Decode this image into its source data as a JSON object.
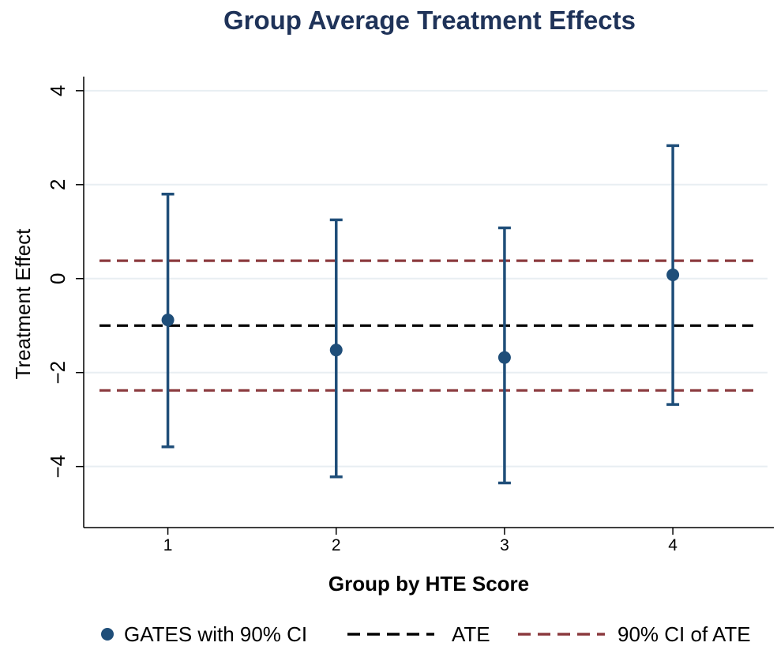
{
  "chart_data": {
    "type": "scatter",
    "title": "Group Average Treatment Effects",
    "xlabel": "Group by HTE Score",
    "ylabel": "Treatment Effect",
    "x_ticks": [
      "1",
      "2",
      "3",
      "4"
    ],
    "y_ticks": [
      -4,
      -2,
      0,
      2,
      4
    ],
    "y_tick_labels": [
      "−4",
      "−2",
      "0",
      "2",
      "4"
    ],
    "xlim": [
      0.5,
      4.6
    ],
    "ylim": [
      -5.3,
      4.3
    ],
    "grid": true,
    "legend_position": "bottom",
    "series": [
      {
        "name": "GATES with 90% CI",
        "x": [
          1,
          2,
          3,
          4
        ],
        "values": [
          -0.88,
          -1.52,
          -1.68,
          0.08
        ],
        "ci_lower": [
          -3.58,
          -4.22,
          -4.35,
          -2.68
        ],
        "ci_upper": [
          1.8,
          1.25,
          1.08,
          2.83
        ],
        "color": "#1f4e79"
      },
      {
        "name": "ATE",
        "value": -1.0,
        "color": "#000000"
      },
      {
        "name": "90% CI of ATE",
        "values": [
          0.38,
          -2.38
        ],
        "color": "#8b3a3e"
      }
    ]
  }
}
